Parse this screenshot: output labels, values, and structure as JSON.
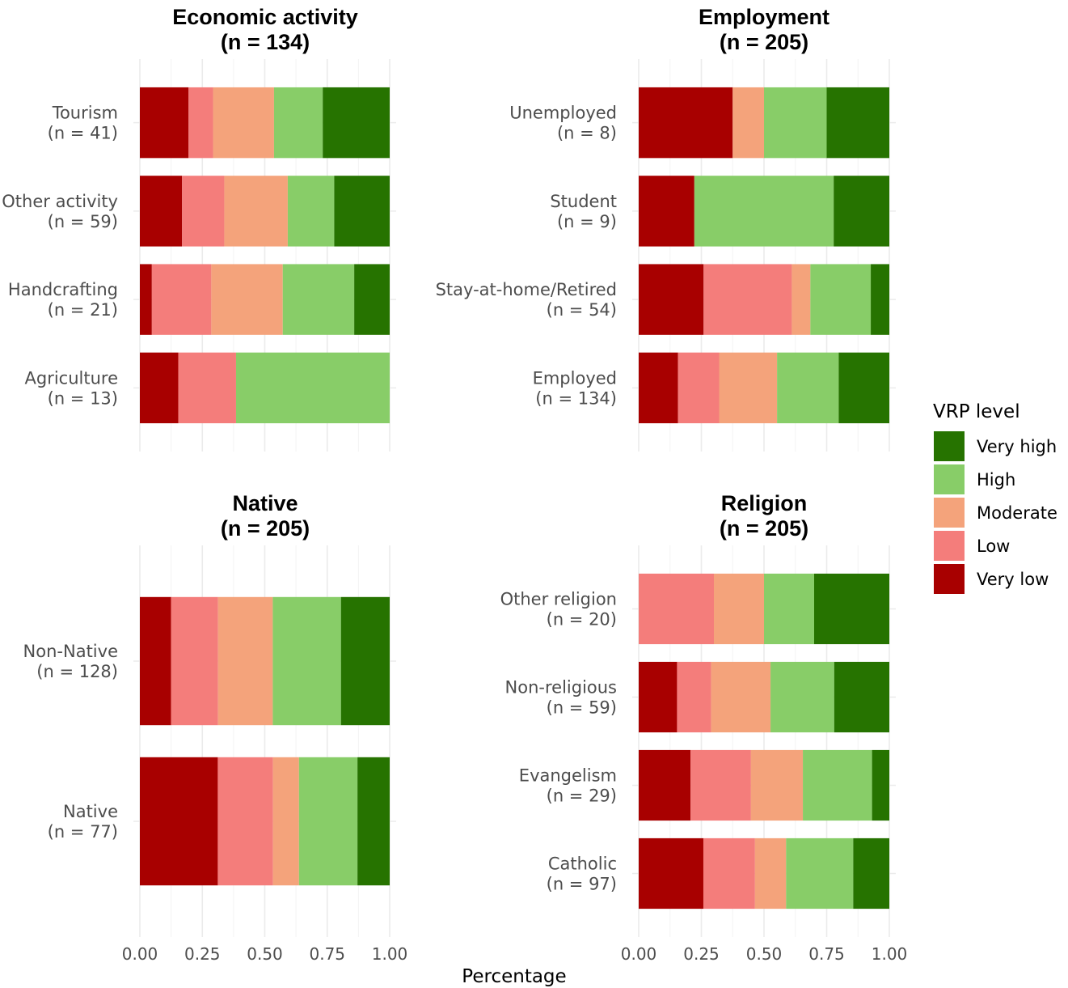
{
  "chart_data": {
    "type": "bar",
    "orientation": "horizontal",
    "stacked": true,
    "xlabel": "Percentage",
    "xlim": [
      0,
      1
    ],
    "x_ticks": [
      "0.00",
      "0.25",
      "0.50",
      "0.75",
      "1.00"
    ],
    "grid": true,
    "legend": {
      "title": "VRP level",
      "placement": "right",
      "items": [
        {
          "name": "Very high",
          "color": "#267300"
        },
        {
          "name": "High",
          "color": "#88cd68"
        },
        {
          "name": "Moderate",
          "color": "#f4a37b"
        },
        {
          "name": "Low",
          "color": "#f47d7b"
        },
        {
          "name": "Very low",
          "color": "#a80000"
        }
      ]
    },
    "segment_order": [
      "Very low",
      "Low",
      "Moderate",
      "High",
      "Very high"
    ],
    "panels": [
      {
        "title_line1": "Economic activity",
        "title_line2": "(n = 134)",
        "categories": [
          {
            "label1": "Tourism",
            "label2": "(n = 41)",
            "values": [
              0.195,
              0.098,
              0.244,
              0.195,
              0.268
            ]
          },
          {
            "label1": "Other activity",
            "label2": "(n = 59)",
            "values": [
              0.169,
              0.169,
              0.254,
              0.186,
              0.222
            ]
          },
          {
            "label1": "Handcrafting",
            "label2": "(n = 21)",
            "values": [
              0.048,
              0.238,
              0.286,
              0.286,
              0.142
            ]
          },
          {
            "label1": "Agriculture",
            "label2": "(n = 13)",
            "values": [
              0.154,
              0.231,
              0.0,
              0.615,
              0.0
            ]
          }
        ]
      },
      {
        "title_line1": "Employment",
        "title_line2": "(n = 205)",
        "categories": [
          {
            "label1": "Unemployed",
            "label2": "(n = 8)",
            "values": [
              0.375,
              0.0,
              0.125,
              0.25,
              0.25
            ]
          },
          {
            "label1": "Student",
            "label2": "(n = 9)",
            "values": [
              0.222,
              0.0,
              0.0,
              0.556,
              0.222
            ]
          },
          {
            "label1": "Stay-at-home/Retired",
            "label2": "(n = 54)",
            "values": [
              0.259,
              0.352,
              0.074,
              0.241,
              0.074
            ]
          },
          {
            "label1": "Employed",
            "label2": "(n = 134)",
            "values": [
              0.157,
              0.164,
              0.231,
              0.246,
              0.202
            ]
          }
        ]
      },
      {
        "title_line1": "Native",
        "title_line2": "(n = 205)",
        "categories": [
          {
            "label1": "Non-Native",
            "label2": "(n = 128)",
            "values": [
              0.125,
              0.188,
              0.219,
              0.273,
              0.195
            ]
          },
          {
            "label1": "Native",
            "label2": "(n = 77)",
            "values": [
              0.312,
              0.221,
              0.104,
              0.234,
              0.129
            ]
          }
        ]
      },
      {
        "title_line1": "Religion",
        "title_line2": "(n = 205)",
        "categories": [
          {
            "label1": "Other religion",
            "label2": "(n = 20)",
            "values": [
              0.0,
              0.3,
              0.2,
              0.2,
              0.3
            ]
          },
          {
            "label1": "Non-religious",
            "label2": "(n = 59)",
            "values": [
              0.153,
              0.136,
              0.237,
              0.254,
              0.22
            ]
          },
          {
            "label1": "Evangelism",
            "label2": "(n = 29)",
            "values": [
              0.207,
              0.241,
              0.207,
              0.276,
              0.069
            ]
          },
          {
            "label1": "Catholic",
            "label2": "(n = 97)",
            "values": [
              0.258,
              0.206,
              0.124,
              0.268,
              0.144
            ]
          }
        ]
      }
    ]
  }
}
